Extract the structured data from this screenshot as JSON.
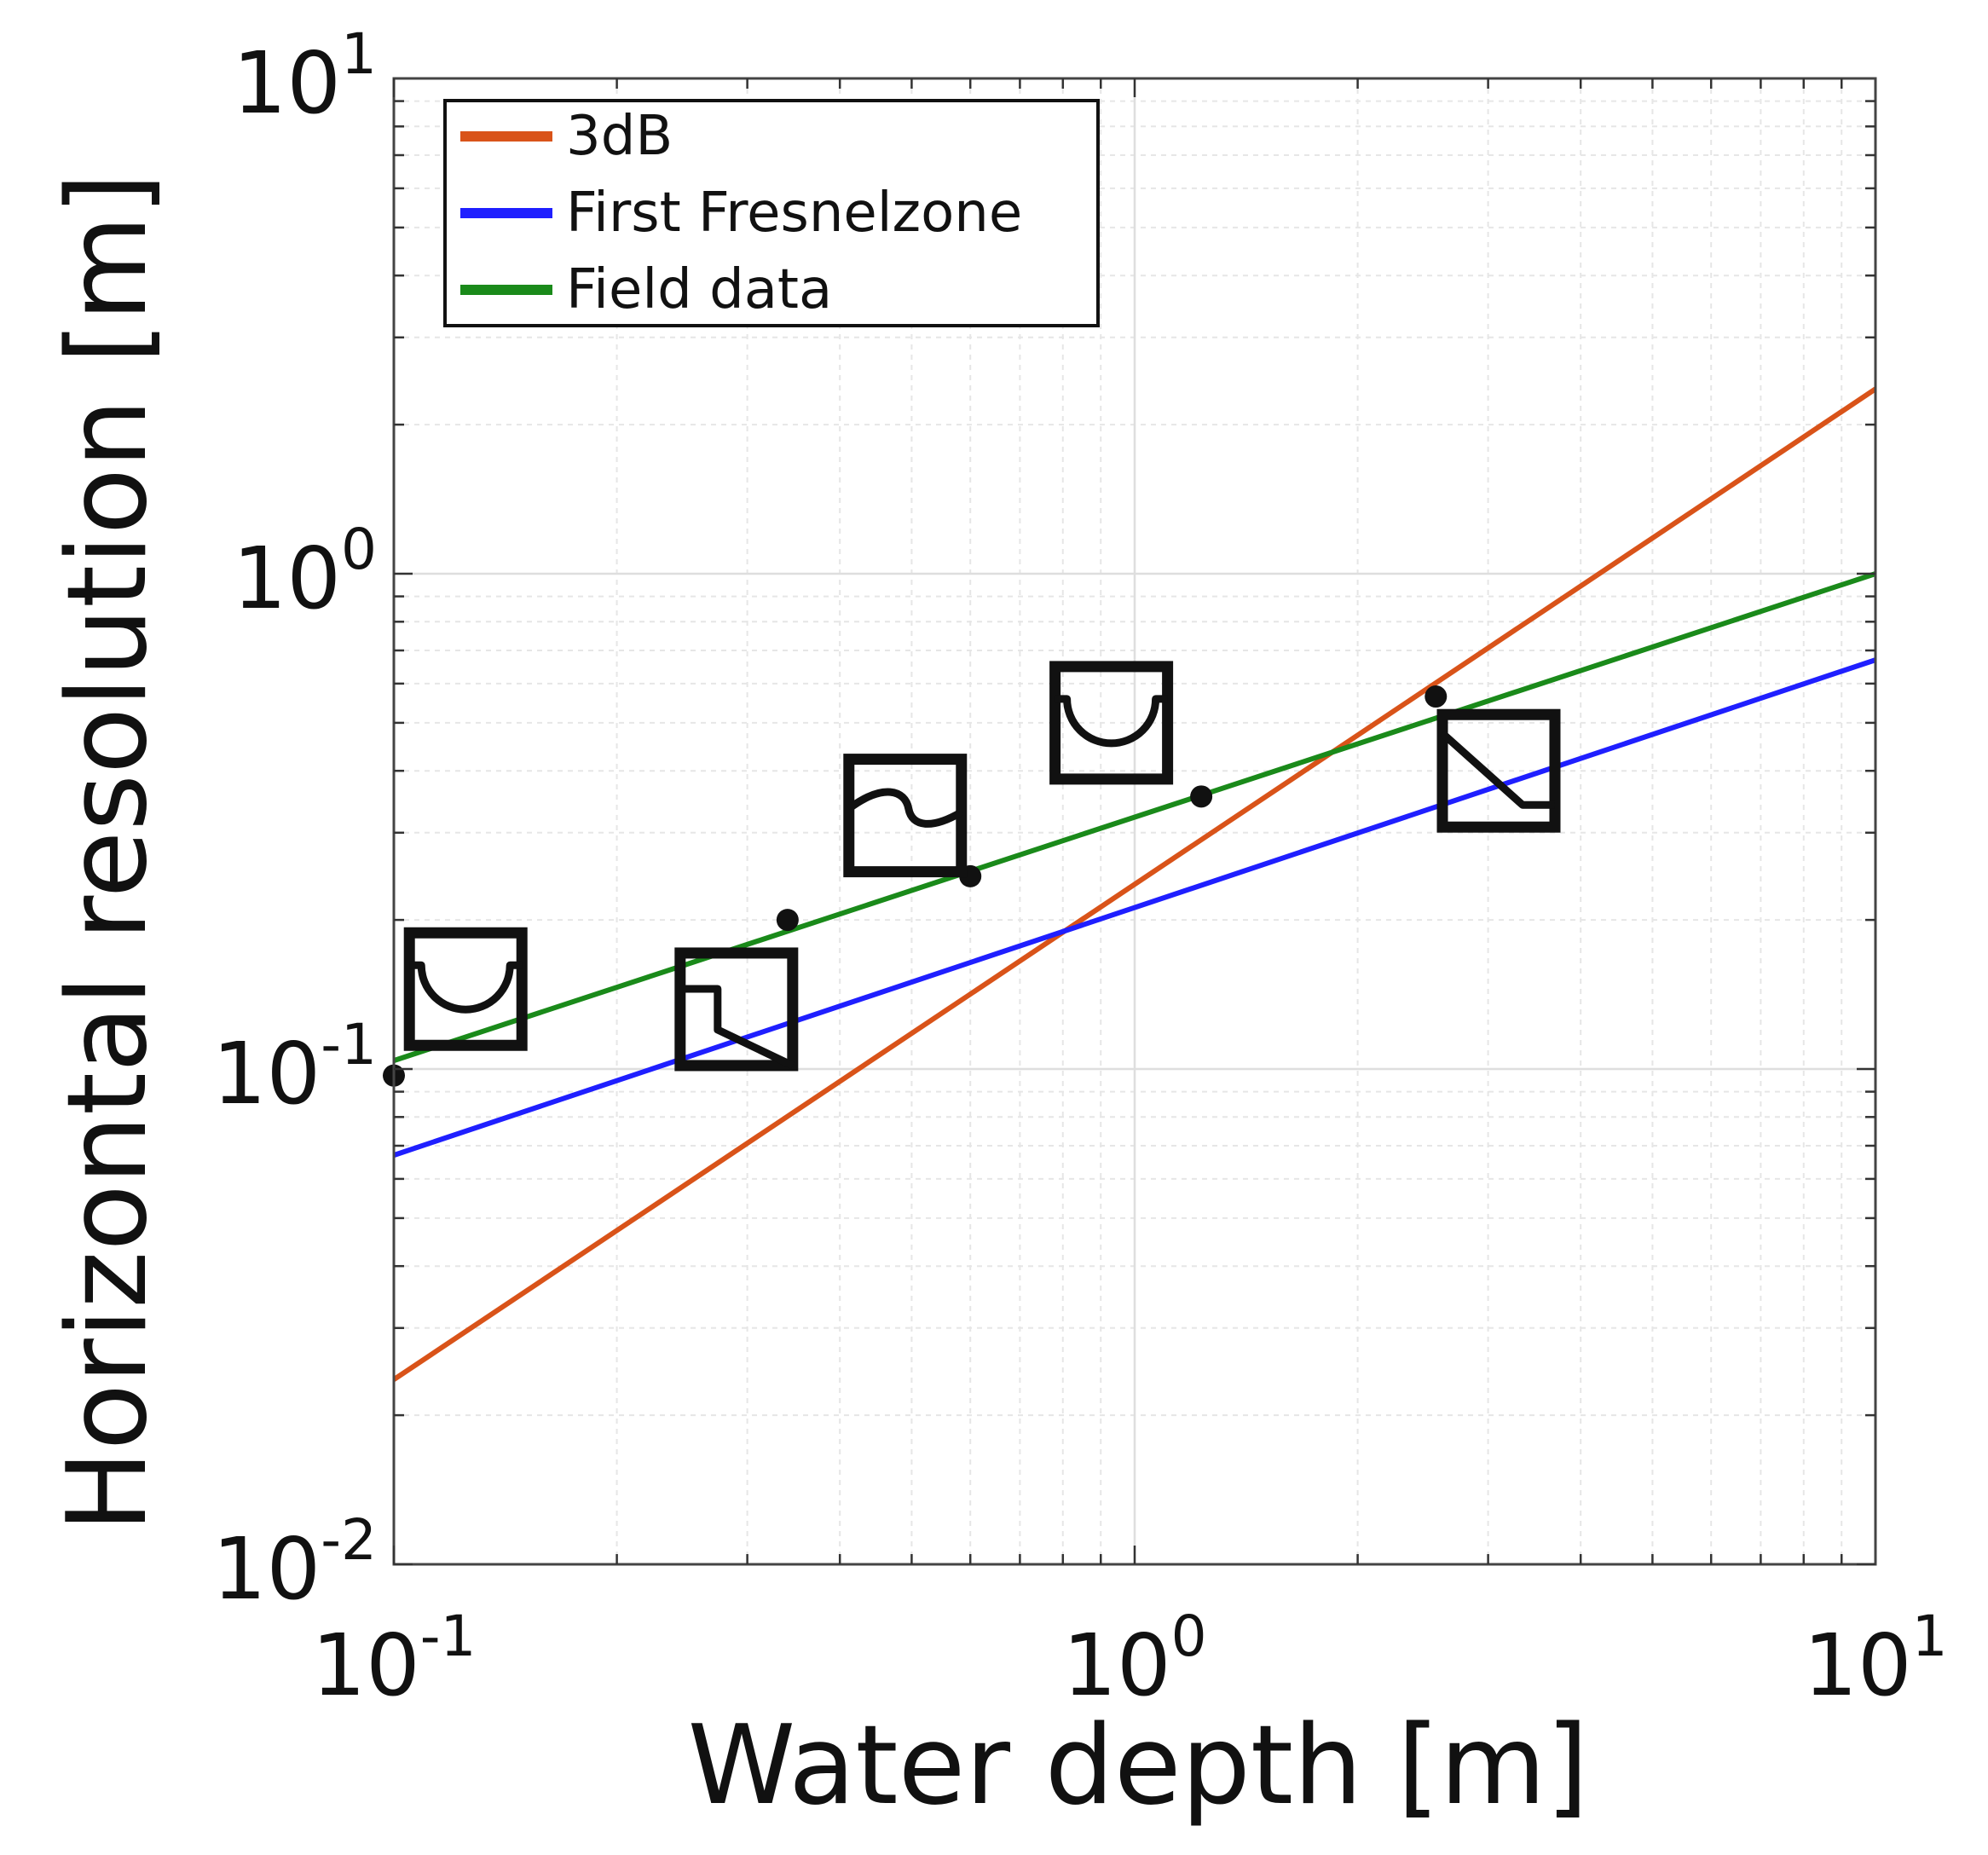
{
  "chart_data": {
    "type": "line",
    "xlabel": "Water depth [m]",
    "ylabel": "Horizontal resolution [m]",
    "xscale": "log",
    "yscale": "log",
    "xlim": [
      0.1,
      10
    ],
    "ylim": [
      0.01,
      10
    ],
    "grid": true,
    "legend_position": "top-left",
    "x_ticks": [
      {
        "base": "10",
        "exp": "-1",
        "value": 0.1
      },
      {
        "base": "10",
        "exp": "0",
        "value": 1
      },
      {
        "base": "10",
        "exp": "1",
        "value": 10
      }
    ],
    "y_ticks": [
      {
        "base": "10",
        "exp": "-2",
        "value": 0.01
      },
      {
        "base": "10",
        "exp": "-1",
        "value": 0.1
      },
      {
        "base": "10",
        "exp": "0",
        "value": 1
      },
      {
        "base": "10",
        "exp": "1",
        "value": 10
      }
    ],
    "series": [
      {
        "name": "3dB",
        "color": "#d95319",
        "x": [
          0.1,
          10
        ],
        "y": [
          0.0236,
          2.36
        ]
      },
      {
        "name": "First Fresnelzone",
        "color": "#1f1fff",
        "x": [
          0.1,
          10
        ],
        "y": [
          0.067,
          0.67
        ]
      },
      {
        "name": "Field data",
        "color": "#1a8a1a",
        "x": [
          0.1,
          10
        ],
        "y": [
          0.104,
          1.0
        ]
      }
    ],
    "points": {
      "x": [
        0.1,
        0.34,
        0.6,
        1.23,
        2.55
      ],
      "y": [
        0.097,
        0.2,
        0.245,
        0.355,
        0.565
      ]
    },
    "markers": [
      {
        "icon": "u-channel-icon",
        "x": 0.125,
        "y": 0.145
      },
      {
        "icon": "step-drop-icon",
        "x": 0.29,
        "y": 0.132
      },
      {
        "icon": "wave-icon",
        "x": 0.49,
        "y": 0.325
      },
      {
        "icon": "u-channel-icon",
        "x": 0.93,
        "y": 0.5
      },
      {
        "icon": "diagonal-slope-icon",
        "x": 3.1,
        "y": 0.4
      }
    ]
  }
}
